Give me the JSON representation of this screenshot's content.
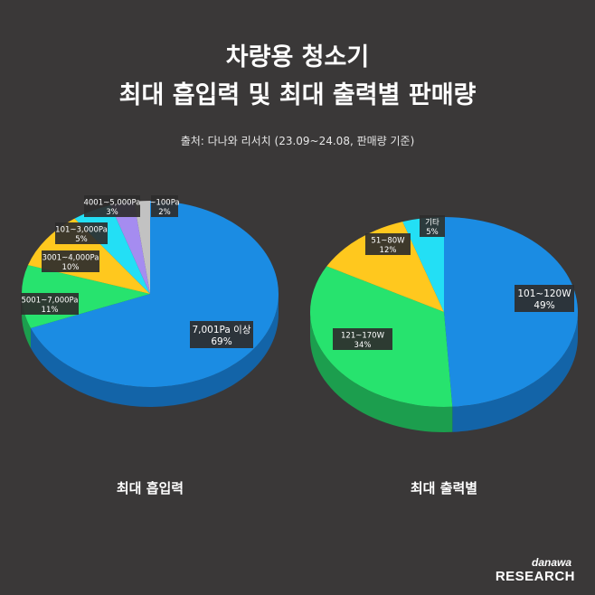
{
  "title_line1": "차량용 청소기",
  "title_line2": "최대 흡입력 및 최대 출력별 판매량",
  "source": "출처: 다나와 리서치 (23.09~24.08, 판매량 기준)",
  "brand": {
    "top": "danawa",
    "bottom": "RESEARCH"
  },
  "chart_data": [
    {
      "type": "pie",
      "title": "최대 흡입력",
      "slices": [
        {
          "label": "7,001Pa 이상",
          "value": 69,
          "color": "#1b8ce3",
          "side": "#1364a8"
        },
        {
          "label": "5001~7,000Pa",
          "value": 11,
          "color": "#27e36e",
          "side": "#1c9e4e"
        },
        {
          "label": "3001~4,000Pa",
          "value": 10,
          "color": "#ffc81e",
          "side": "#b38c15"
        },
        {
          "label": "101~3,000Pa",
          "value": 5,
          "color": "#23dff5",
          "side": "#189dad"
        },
        {
          "label": "4001~5,000Pa",
          "value": 3,
          "color": "#a58cf0",
          "side": "#7462a8"
        },
        {
          "label": "~100Pa",
          "value": 2,
          "color": "#c2c2c2",
          "side": "#888888"
        }
      ]
    },
    {
      "type": "pie",
      "title": "최대 출력별",
      "slices": [
        {
          "label": "101~120W",
          "value": 49,
          "color": "#1b8ce3",
          "side": "#1364a8"
        },
        {
          "label": "121~170W",
          "value": 34,
          "color": "#27e36e",
          "side": "#1c9e4e"
        },
        {
          "label": "51~80W",
          "value": 12,
          "color": "#ffc81e",
          "side": "#b38c15"
        },
        {
          "label": "기타",
          "value": 5,
          "color": "#23dff5",
          "side": "#189dad"
        }
      ]
    }
  ]
}
